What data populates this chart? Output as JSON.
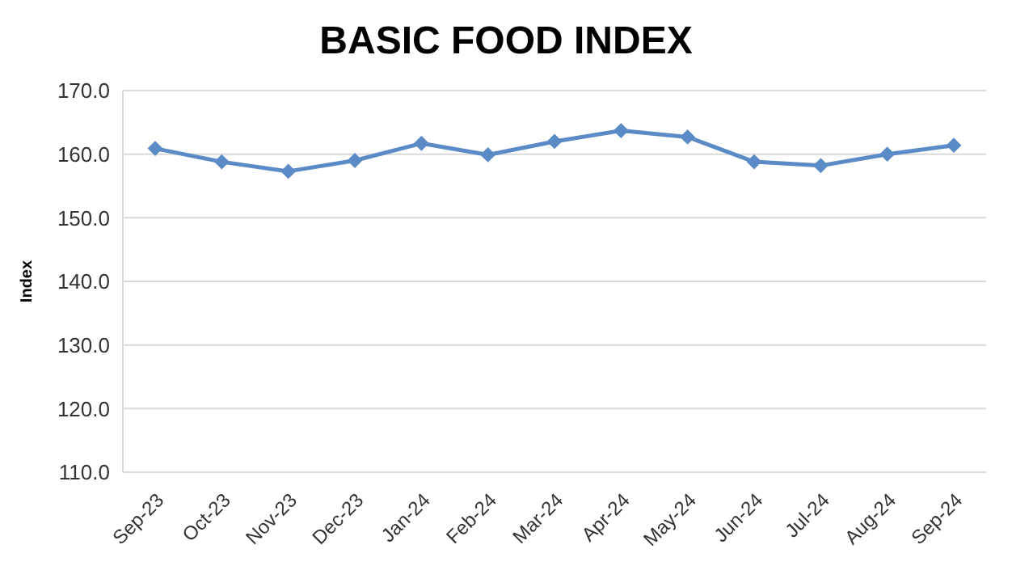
{
  "chart_data": {
    "type": "line",
    "title": "BASIC FOOD INDEX",
    "ylabel": "Index",
    "categories": [
      "Sep-23",
      "Oct-23",
      "Nov-23",
      "Dec-23",
      "Jan-24",
      "Feb-24",
      "Mar-24",
      "Apr-24",
      "May-24",
      "Jun-24",
      "Jul-24",
      "Aug-24",
      "Sep-24"
    ],
    "series": [
      {
        "color": "#5b8bc6",
        "values": [
          160.9,
          158.8,
          157.3,
          159.0,
          161.7,
          159.9,
          162.0,
          163.7,
          162.7,
          158.8,
          158.2,
          160.0,
          161.4
        ]
      }
    ],
    "ylim": [
      110,
      170
    ],
    "yticks": [
      {
        "value": 110,
        "label": "110.0"
      },
      {
        "value": 120,
        "label": "120.0"
      },
      {
        "value": 130,
        "label": "130.0"
      },
      {
        "value": 140,
        "label": "140.0"
      },
      {
        "value": 150,
        "label": "150.0"
      },
      {
        "value": 160,
        "label": "160.0"
      },
      {
        "value": 170,
        "label": "170.0"
      }
    ],
    "grid": "y",
    "marker": "diamond",
    "line_style": "solid",
    "legend": false
  }
}
